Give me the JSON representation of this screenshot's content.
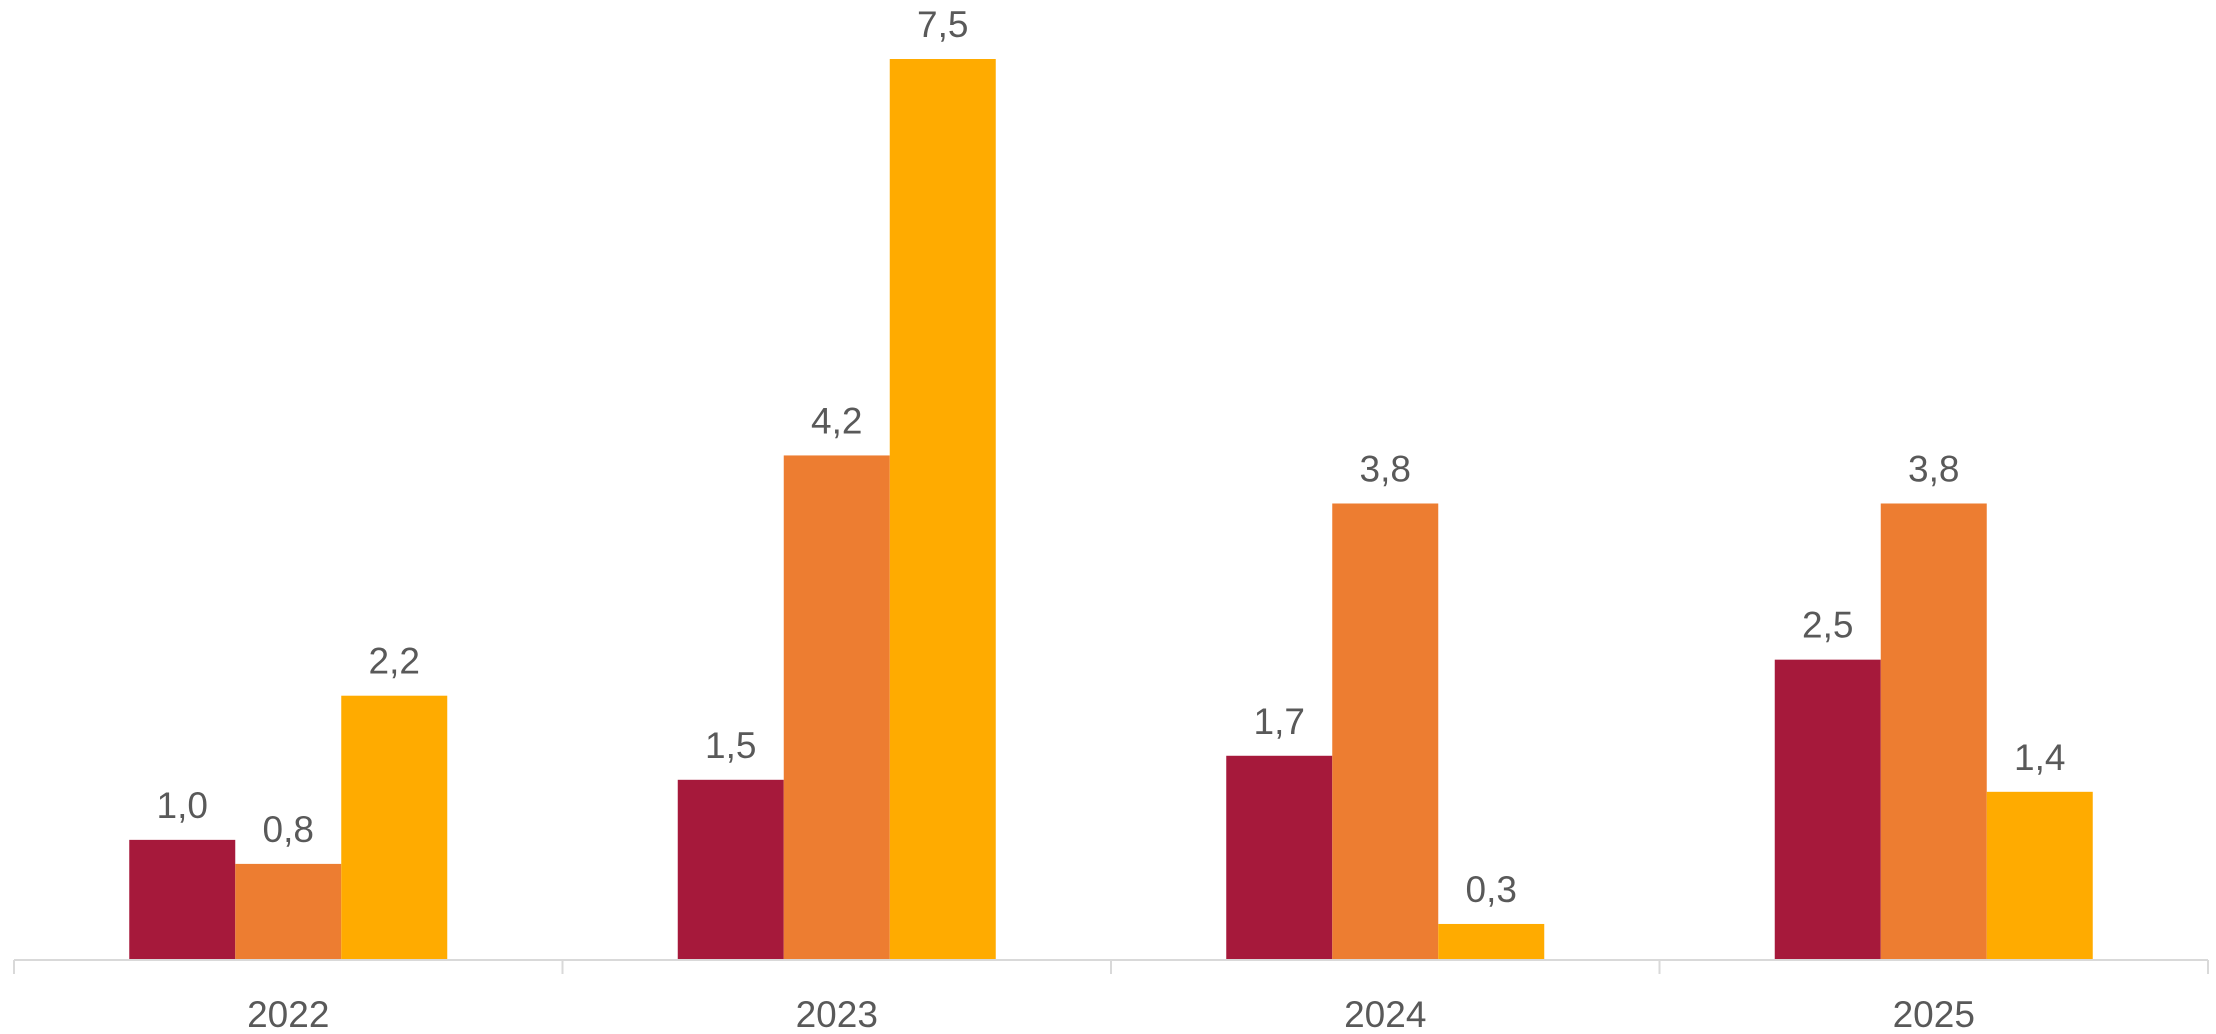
{
  "chart_data": {
    "type": "bar",
    "categories": [
      "2022",
      "2023",
      "2024",
      "2025"
    ],
    "series": [
      {
        "values": [
          1.0,
          1.5,
          1.7,
          2.5
        ],
        "labels": [
          "1,0",
          "1,5",
          "1,7",
          "2,5"
        ],
        "color": "#A6193B"
      },
      {
        "values": [
          0.8,
          4.2,
          3.8,
          3.8
        ],
        "labels": [
          "0,8",
          "4,2",
          "3,8",
          "3,8"
        ],
        "color": "#ED7D31"
      },
      {
        "values": [
          2.2,
          7.5,
          0.3,
          1.4
        ],
        "labels": [
          "2,2",
          "7,5",
          "0,3",
          "1,4"
        ],
        "color": "#FFAB00"
      }
    ],
    "title": "",
    "xlabel": "",
    "ylabel": "",
    "ylim": [
      0,
      7.5
    ],
    "grid": false,
    "legend": "none",
    "axis_color": "#D9D9D9",
    "text_color": "#595959"
  }
}
